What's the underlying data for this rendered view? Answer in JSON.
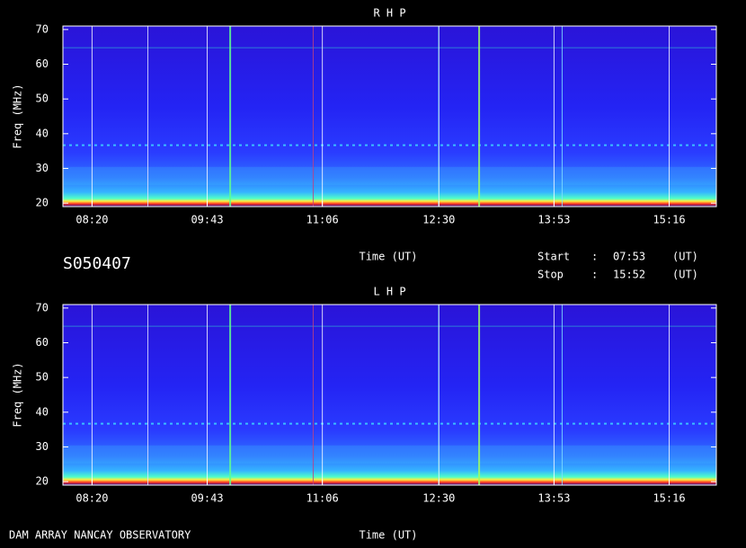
{
  "chart_data": [
    {
      "type": "spectrogram",
      "title": "R H P",
      "xlabel": "Time (UT)",
      "ylabel": "Freq (MHz)",
      "xlim": [
        479,
        950
      ],
      "xticks": [
        {
          "value": 500,
          "label": "08:20"
        },
        {
          "value": 583,
          "label": "09:43"
        },
        {
          "value": 666,
          "label": "11:06"
        },
        {
          "value": 750,
          "label": "12:30"
        },
        {
          "value": 833,
          "label": "13:53"
        },
        {
          "value": 916,
          "label": "15:16"
        }
      ],
      "ylim": [
        19,
        71
      ],
      "yticks": [
        20,
        30,
        40,
        50,
        60,
        70
      ]
    },
    {
      "type": "spectrogram",
      "title": "L H P",
      "xlabel": "Time (UT)",
      "ylabel": "Freq (MHz)",
      "xlim": [
        479,
        950
      ],
      "xticks": [
        {
          "value": 500,
          "label": "08:20"
        },
        {
          "value": 583,
          "label": "09:43"
        },
        {
          "value": 666,
          "label": "11:06"
        },
        {
          "value": 750,
          "label": "12:30"
        },
        {
          "value": 833,
          "label": "13:53"
        },
        {
          "value": 916,
          "label": "15:16"
        }
      ],
      "ylim": [
        19,
        71
      ],
      "yticks": [
        20,
        30,
        40,
        50,
        60,
        70
      ]
    }
  ],
  "observation_id": "S050407",
  "start": {
    "label": "Start",
    "separator": ":",
    "time": "07:53",
    "unit": "(UT)"
  },
  "stop": {
    "label": "Stop",
    "separator": ":",
    "time": "15:52",
    "unit": "(UT)"
  },
  "footer": "DAM ARRAY  NANCAY OBSERVATORY"
}
